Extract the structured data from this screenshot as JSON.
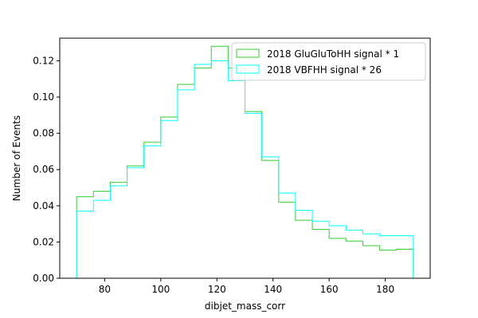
{
  "chart_data": {
    "type": "histogram-step",
    "xlabel": "dibjet_mass_corr",
    "ylabel": "Number of Events",
    "xlim": [
      64,
      196
    ],
    "ylim": [
      0,
      0.1325
    ],
    "bin_edges": [
      70,
      76,
      82,
      88,
      94,
      100,
      106,
      112,
      118,
      124,
      130,
      136,
      142,
      148,
      154,
      160,
      166,
      172,
      178,
      184,
      190
    ],
    "x_ticks": [
      80,
      100,
      120,
      140,
      160,
      180
    ],
    "x_tick_labels": [
      "80",
      "100",
      "120",
      "140",
      "160",
      "180"
    ],
    "y_ticks": [
      0,
      0.02,
      0.04,
      0.06,
      0.08,
      0.1,
      0.12
    ],
    "y_tick_labels": [
      "0.00",
      "0.02",
      "0.04",
      "0.06",
      "0.08",
      "0.10",
      "0.12"
    ],
    "legend_position": "top-right",
    "series": [
      {
        "name": "2018 GluGluToHH signal * 1",
        "color": "#33cc33",
        "values": [
          0.045,
          0.048,
          0.053,
          0.062,
          0.075,
          0.089,
          0.107,
          0.116,
          0.128,
          0.116,
          0.092,
          0.065,
          0.042,
          0.032,
          0.027,
          0.022,
          0.0205,
          0.018,
          0.0155,
          0.016
        ]
      },
      {
        "name": "2018 VBFHH signal * 26",
        "color": "#00ffff",
        "values": [
          0.037,
          0.043,
          0.051,
          0.061,
          0.073,
          0.087,
          0.104,
          0.118,
          0.12,
          0.109,
          0.091,
          0.067,
          0.047,
          0.0375,
          0.0315,
          0.029,
          0.0265,
          0.0245,
          0.0235,
          0.0235
        ]
      }
    ]
  }
}
